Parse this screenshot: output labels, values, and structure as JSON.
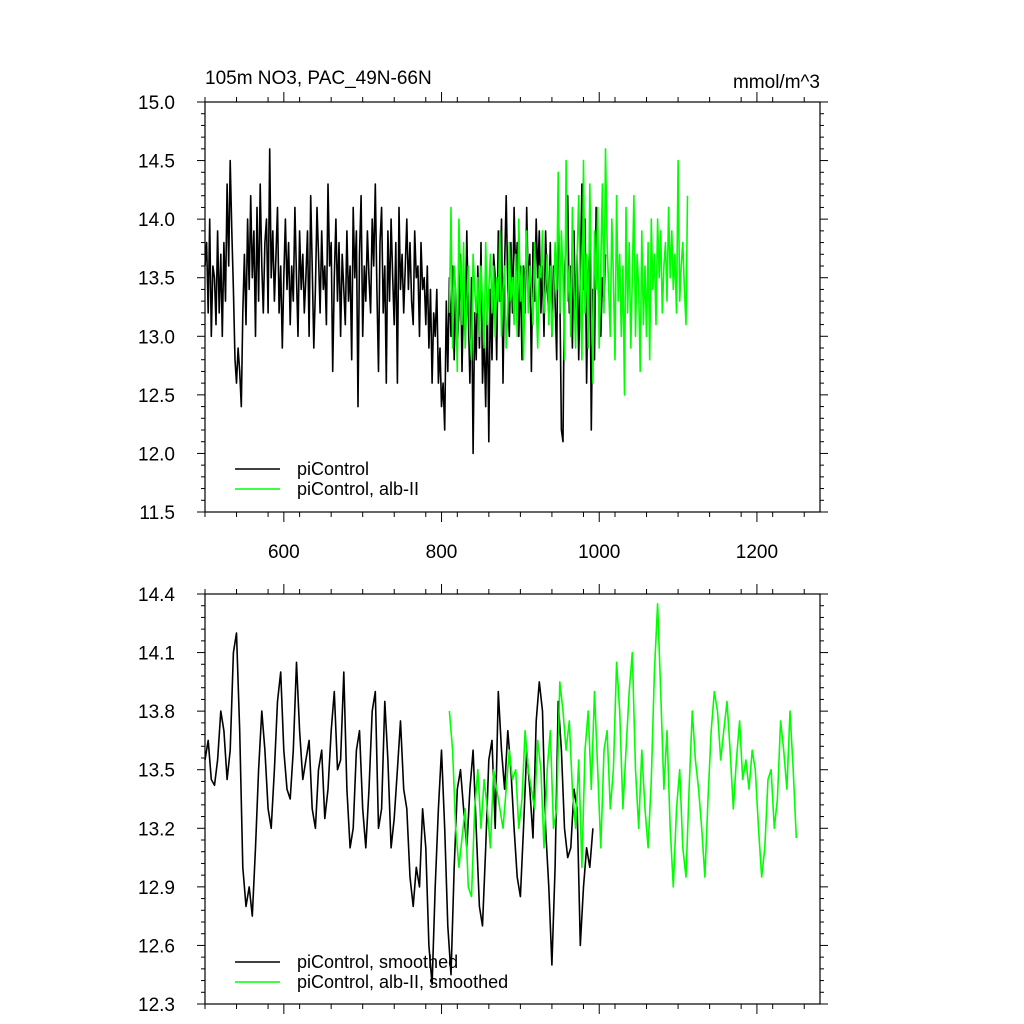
{
  "colors": {
    "control": "#000000",
    "alb": "#00ff00"
  },
  "chart_data": [
    {
      "type": "line",
      "title_left": "105m NO3, PAC_49N-66N",
      "title_right": "mmol/m^3",
      "xlim": [
        500,
        1280
      ],
      "ylim": [
        11.5,
        15.0
      ],
      "x_ticks": [
        600,
        800,
        1000,
        1200
      ],
      "x_tick_labels": [
        "600",
        "800",
        "1000",
        "1200"
      ],
      "y_ticks": [
        11.5,
        12.0,
        12.5,
        13.0,
        13.5,
        14.0,
        14.5,
        15.0
      ],
      "y_tick_labels": [
        "11.5",
        "12.0",
        "12.5",
        "13.0",
        "13.5",
        "14.0",
        "14.5",
        "15.0"
      ],
      "legend_position": "bottom-left",
      "series": [
        {
          "name": "piControl",
          "color": "#000000",
          "x_start": 500,
          "x_step": 2,
          "values": [
            13.6,
            13.8,
            13.2,
            14.0,
            13.0,
            13.6,
            13.5,
            13.1,
            13.9,
            13.2,
            13.7,
            13.0,
            13.8,
            13.3,
            14.3,
            13.6,
            14.5,
            13.9,
            13.4,
            12.8,
            12.6,
            12.9,
            12.7,
            12.4,
            13.2,
            13.7,
            13.1,
            14.0,
            13.4,
            14.2,
            13.5,
            13.9,
            13.0,
            14.1,
            13.3,
            14.3,
            13.6,
            13.2,
            13.8,
            14.0,
            13.2,
            14.6,
            13.5,
            13.9,
            13.3,
            13.7,
            14.1,
            13.2,
            13.6,
            12.9,
            13.5,
            14.0,
            13.4,
            13.8,
            13.1,
            13.6,
            13.3,
            14.1,
            13.5,
            13.0,
            13.9,
            13.4,
            13.7,
            13.2,
            13.5,
            13.9,
            13.0,
            14.2,
            13.6,
            12.9,
            13.4,
            14.1,
            13.7,
            13.2,
            13.9,
            13.4,
            13.6,
            13.1,
            14.3,
            13.6,
            13.8,
            12.7,
            13.5,
            14.0,
            13.3,
            13.8,
            13.0,
            13.7,
            13.4,
            13.1,
            13.9,
            13.3,
            13.6,
            12.8,
            14.1,
            13.5,
            13.9,
            12.4,
            13.7,
            14.2,
            13.0,
            13.6,
            13.3,
            13.9,
            13.5,
            13.2,
            14.0,
            13.6,
            14.3,
            13.4,
            12.7,
            13.8,
            14.1,
            13.2,
            13.6,
            12.6,
            13.9,
            13.3,
            14.0,
            13.5,
            13.1,
            13.8,
            12.6,
            14.1,
            13.4,
            13.7,
            13.2,
            13.6,
            14.0,
            13.4,
            13.8,
            13.3,
            13.1,
            13.9,
            13.5,
            13.6,
            13.0,
            13.8,
            13.4,
            13.5,
            13.1,
            13.6,
            12.9,
            13.4,
            12.6,
            13.2,
            13.0,
            13.4,
            12.6,
            12.9,
            12.4,
            12.6,
            12.2,
            13.3,
            12.7,
            13.5,
            13.0,
            13.6,
            12.8,
            13.4,
            12.9,
            13.2,
            13.7,
            12.7,
            13.4,
            13.0,
            13.9,
            13.2,
            12.6,
            13.5,
            12.0,
            13.2,
            12.8,
            13.6,
            12.9,
            13.8,
            12.6,
            13.0,
            12.4,
            13.3,
            12.1,
            13.4,
            12.8,
            13.7,
            13.5,
            12.8,
            13.9,
            13.3,
            14.0,
            12.6,
            13.6,
            14.2,
            13.4,
            13.0,
            13.8,
            13.2,
            14.1,
            13.5,
            13.8,
            13.0,
            13.6,
            12.8,
            13.6,
            13.2,
            14.1,
            13.4,
            13.7,
            12.7,
            13.8,
            13.3,
            14.0,
            13.5,
            13.9,
            13.2,
            13.6,
            13.0,
            13.9,
            13.4,
            13.2,
            13.8,
            13.0,
            13.6,
            13.3,
            12.8,
            14.2,
            13.4,
            12.2,
            12.1,
            13.5,
            13.9,
            14.2,
            13.2,
            13.6,
            12.9,
            13.9,
            13.1,
            13.7,
            12.8,
            13.5,
            14.3,
            13.4,
            14.0,
            12.6,
            13.5,
            13.8,
            12.2,
            13.4,
            12.8,
            14.1,
            13.6,
            13.2,
            13.0,
            13.5,
            13.3,
            13.7
          ]
        },
        {
          "name": "piControl, alb-II",
          "color": "#00ff00",
          "x_start": 810,
          "x_step": 2,
          "values": [
            13.2,
            14.1,
            12.9,
            13.6,
            13.4,
            12.7,
            14.0,
            13.5,
            13.1,
            13.8,
            12.9,
            13.3,
            13.6,
            13.0,
            12.8,
            13.7,
            13.4,
            13.2,
            13.5,
            13.0,
            13.6,
            13.3,
            12.9,
            13.8,
            13.1,
            13.4,
            13.7,
            13.2,
            13.6,
            13.0,
            13.5,
            13.3,
            13.9,
            13.0,
            13.4,
            13.6,
            12.9,
            13.2,
            13.8,
            13.3,
            13.5,
            13.1,
            13.7,
            13.0,
            14.0,
            13.3,
            13.6,
            12.8,
            13.5,
            13.9,
            13.2,
            13.6,
            13.4,
            13.1,
            13.8,
            13.3,
            12.9,
            13.6,
            13.5,
            13.9,
            13.2,
            13.4,
            13.7,
            13.1,
            13.6,
            13.0,
            13.3,
            13.8,
            13.4,
            14.4,
            13.2,
            13.9,
            13.5,
            12.8,
            14.5,
            13.3,
            13.6,
            13.0,
            14.1,
            13.4,
            12.9,
            13.7,
            14.2,
            13.4,
            12.8,
            14.5,
            13.2,
            13.7,
            12.9,
            14.3,
            13.5,
            12.6,
            13.9,
            13.4,
            14.1,
            12.9,
            13.6,
            14.3,
            13.2,
            14.6,
            13.8,
            13.4,
            13.0,
            14.0,
            13.5,
            12.8,
            14.2,
            13.3,
            13.7,
            13.0,
            13.6,
            12.5,
            14.1,
            13.2,
            13.8,
            12.9,
            13.5,
            14.2,
            13.0,
            13.7,
            13.4,
            12.7,
            13.9,
            13.1,
            13.6,
            13.0,
            13.8,
            12.8,
            14.0,
            13.4,
            13.7,
            13.1,
            14.0,
            13.5,
            13.9,
            13.2,
            13.6,
            13.8,
            13.3,
            14.1,
            13.5,
            13.9,
            13.4,
            13.7,
            13.2,
            14.5,
            13.3,
            13.6,
            13.8,
            13.4,
            13.1,
            14.2
          ]
        }
      ]
    },
    {
      "type": "line",
      "xlim": [
        500,
        1280
      ],
      "ylim": [
        12.3,
        14.4
      ],
      "x_ticks": [
        600,
        800,
        1000,
        1200
      ],
      "y_ticks": [
        12.3,
        12.6,
        12.9,
        13.2,
        13.5,
        13.8,
        14.1,
        14.4
      ],
      "y_tick_labels": [
        "12.3",
        "12.6",
        "12.9",
        "13.2",
        "13.5",
        "13.8",
        "14.1",
        "14.4"
      ],
      "legend_position": "bottom-left",
      "series": [
        {
          "name": "piControl, smoothed",
          "color": "#000000",
          "x_start": 500,
          "x_step": 4,
          "values": [
            13.55,
            13.65,
            13.45,
            13.42,
            13.55,
            13.8,
            13.7,
            13.45,
            13.6,
            14.1,
            14.2,
            13.7,
            13.0,
            12.8,
            12.9,
            12.75,
            13.1,
            13.5,
            13.8,
            13.6,
            13.3,
            13.2,
            13.5,
            13.85,
            14.0,
            13.6,
            13.4,
            13.35,
            13.6,
            14.05,
            13.7,
            13.45,
            13.55,
            13.65,
            13.3,
            13.2,
            13.5,
            13.6,
            13.25,
            13.4,
            13.7,
            13.9,
            13.5,
            13.55,
            14.0,
            13.4,
            13.1,
            13.2,
            13.6,
            13.7,
            13.3,
            13.1,
            13.4,
            13.8,
            13.9,
            13.2,
            13.3,
            13.85,
            13.55,
            13.1,
            13.25,
            13.5,
            13.75,
            13.4,
            13.3,
            12.95,
            12.8,
            13.0,
            12.9,
            13.3,
            13.1,
            12.6,
            12.4,
            12.9,
            13.3,
            13.6,
            13.2,
            12.7,
            12.45,
            13.0,
            13.4,
            13.5,
            13.3,
            13.1,
            13.4,
            13.6,
            13.2,
            12.8,
            12.7,
            13.1,
            13.55,
            13.65,
            13.2,
            13.9,
            13.6,
            13.4,
            13.7,
            13.5,
            13.2,
            12.95,
            12.85,
            13.2,
            13.6,
            13.4,
            13.15,
            13.75,
            13.95,
            13.8,
            13.2,
            12.9,
            12.5,
            13.0,
            13.85,
            13.6,
            13.2,
            13.05,
            13.1,
            13.4,
            13.3,
            12.6,
            12.9,
            13.1,
            13.0,
            13.2
          ]
        },
        {
          "name": "piControl, alb-II, smoothed",
          "color": "#00ff00",
          "x_start": 810,
          "x_step": 4,
          "values": [
            13.8,
            13.6,
            13.2,
            13.0,
            13.15,
            13.3,
            12.9,
            12.85,
            13.3,
            13.5,
            13.2,
            13.45,
            13.3,
            13.1,
            13.5,
            13.4,
            13.3,
            13.2,
            13.4,
            13.6,
            13.45,
            13.5,
            13.2,
            13.35,
            13.7,
            13.5,
            13.4,
            13.3,
            13.65,
            13.5,
            13.1,
            13.5,
            13.7,
            13.2,
            13.3,
            13.95,
            13.8,
            13.6,
            13.75,
            13.4,
            13.2,
            13.55,
            13.0,
            13.6,
            13.8,
            13.4,
            13.9,
            13.5,
            13.1,
            13.6,
            13.7,
            13.3,
            13.5,
            14.05,
            13.8,
            13.3,
            13.6,
            13.9,
            14.1,
            13.5,
            13.2,
            13.6,
            13.3,
            13.1,
            13.45,
            14.0,
            14.35,
            13.9,
            13.4,
            13.7,
            13.2,
            12.9,
            13.3,
            13.5,
            13.1,
            12.95,
            13.4,
            13.8,
            13.55,
            13.4,
            13.2,
            12.95,
            13.35,
            13.7,
            13.9,
            13.8,
            13.55,
            13.7,
            13.85,
            13.6,
            13.3,
            13.55,
            13.75,
            13.45,
            13.55,
            13.4,
            13.6,
            13.5,
            13.2,
            12.95,
            13.1,
            13.45,
            13.5,
            13.2,
            13.35,
            13.75,
            13.6,
            13.4,
            13.8,
            13.5,
            13.15
          ]
        }
      ]
    }
  ]
}
